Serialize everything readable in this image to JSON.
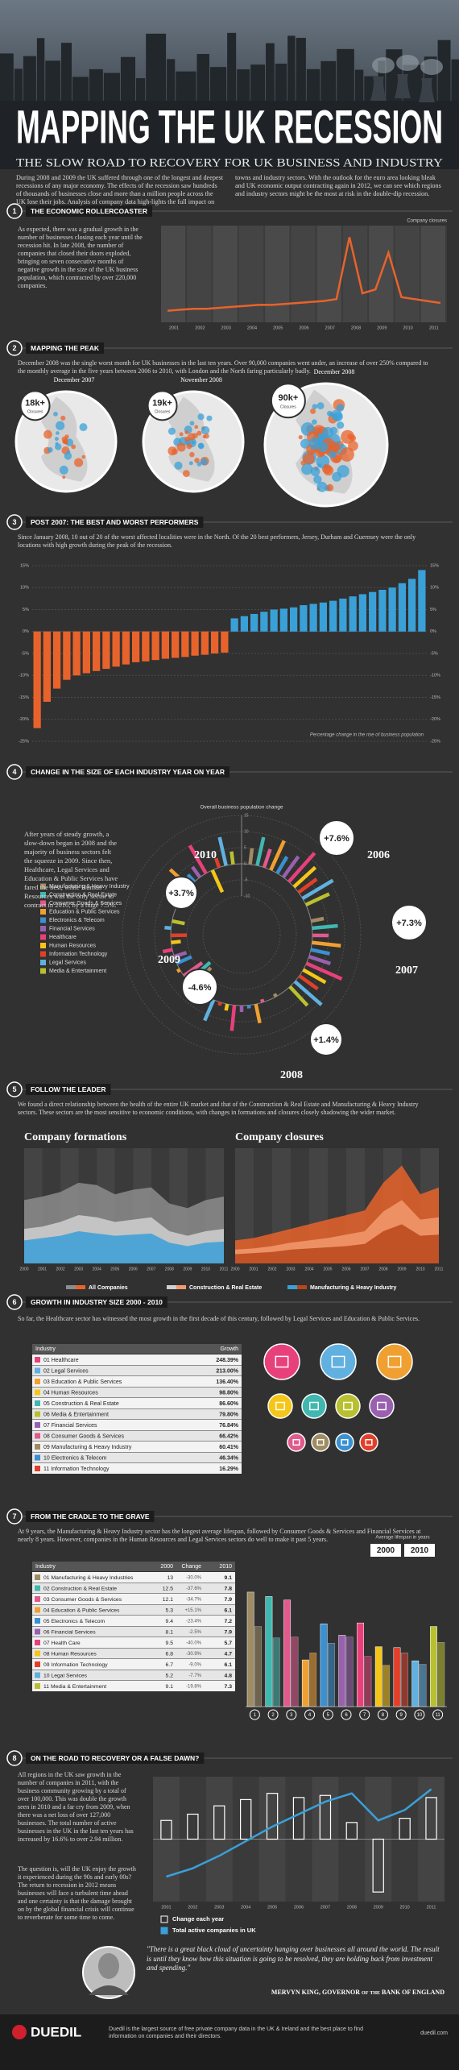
{
  "header": {
    "title": "MAPPING THE UK RECESSION",
    "subtitle": "THE SLOW ROAD TO RECOVERY FOR UK BUSINESS AND INDUSTRY",
    "intro": "During 2008 and 2009 the UK suffered through one of the longest and deepest recessions of any major economy. The effects of the recession saw hundreds of thousands of businesses close and more than a million people across the UK lose their jobs. Analysis of company data high-lights the full impact on towns and industry sectors. With the outlook for the euro area looking bleak and UK economic output contracting again in 2012, we can see which regions and industry sectors might be the most at risk in the double-dip recession."
  },
  "sections": [
    {
      "number": "1",
      "heading": "THE ECONOMIC ROLLERCOASTER",
      "text": "As expected, there was a gradual growth in the number of businesses closing each year until the recession hit. In late 2008, the number of companies that closed their doors exploded, bringing on seven consecutive months of negative growth in the size of the UK business population, which contracted by over 220,000 companies."
    },
    {
      "number": "2",
      "heading": "MAPPING THE PEAK",
      "text": "December 2008 was the single worst month for UK businesses in the last ten years. Over 90,000 companies went under, an increase of over 250% compared to the monthly average in the five years between 2006 to 2010, with London and the North faring particularly badly."
    },
    {
      "number": "3",
      "heading": "POST 2007: THE BEST AND WORST PERFORMERS",
      "text": "Since January 2008, 10 out of 20 of the worst affected localities were in the North. Of the 20 best performers, Jersey, Durham and Guernsey were the only locations with high growth during the peak of the recession."
    },
    {
      "number": "4",
      "heading": "CHANGE IN THE SIZE OF EACH INDUSTRY YEAR ON YEAR",
      "text": "After years of steady growth, a slow-down began in 2008 and the majority of business sectors felt the squeeze in 2009. Since then, Healthcare, Legal Services and Education & Public Services have fared the best, while Human Resources was the only sector to contract in 2010, by a huge 7.5%."
    },
    {
      "number": "5",
      "heading": "FOLLOW THE LEADER",
      "text": "We found a direct relationship between the health of the entire UK market and that of the Construction & Real Estate and Manufacturing & Heavy Industry sectors. These sectors are the most sensitive to economic conditions, with changes in formations and closures closely shadowing the wider market."
    },
    {
      "number": "6",
      "heading": "GROWTH IN INDUSTRY SIZE 2000 - 2010",
      "text": "So far, the Healthcare sector has witnessed the most growth in the first decade of this century, followed by Legal Services and Education & Public Services."
    },
    {
      "number": "7",
      "heading": "FROM THE CRADLE TO THE GRAVE",
      "text": "At 9 years, the Manufacturing & Heavy Industry sector has the longest average lifespan, followed by Consumer Goods & Services and Financial Services at nearly 8 years. However, companies in the Human Resources and Legal Services sectors do well to make it past 5 years."
    },
    {
      "number": "8",
      "heading": "ON THE ROAD TO RECOVERY OR A FALSE DAWN?",
      "text": "All regions in the UK saw growth in the number of companies in 2011, with the business community growing by a total of over 100,000. This was double the growth seen in 2010 and a far cry from 2009, when there was a net loss of over 127,000 businesses. The total number of active businesses in the UK in the last ten years has increased by 16.6% to over 2.94 million.",
      "text2": "The question is, will the UK enjoy the growth it experienced during the 90s and early 00s? The return to recession in 2012 means businesses will face a turbulent time ahead and one certainty is that the damage brought on by the global financial crisis will continue to reverberate for some time to come."
    }
  ],
  "maps": [
    {
      "label": "December 2007",
      "value": "18k+",
      "unit": "Closures"
    },
    {
      "label": "November 2008",
      "value": "19k+",
      "unit": "Closures"
    },
    {
      "label": "December 2008",
      "value": "90k+",
      "unit": "Closures"
    }
  ],
  "chart_data": [
    {
      "type": "line",
      "title": "Company closures",
      "categories": [
        "2001",
        null,
        "2002",
        null,
        "2003",
        null,
        "2004",
        null,
        "2005",
        null,
        "2006",
        null,
        "2007",
        null,
        "2008",
        null,
        "2009",
        null,
        "2010",
        null,
        "2011",
        null
      ],
      "values": [
        12,
        13,
        14,
        14,
        15,
        16,
        17,
        18,
        18,
        19,
        20,
        21,
        22,
        24,
        88,
        30,
        34,
        72,
        26,
        24,
        22,
        20
      ],
      "color": "#e8632b",
      "ylim": [
        0,
        100
      ]
    },
    {
      "type": "bar",
      "values": [
        -22,
        -16,
        -13,
        -11,
        -10,
        -9.5,
        -9,
        -8.5,
        -8,
        -7.5,
        -7,
        -6.8,
        -6.5,
        -6.2,
        -6,
        -5.8,
        -5.5,
        -5.3,
        -5,
        -4.8,
        3,
        3.5,
        4,
        4.5,
        5,
        5.2,
        5.5,
        6,
        6.3,
        6.6,
        7,
        7.5,
        8,
        8.5,
        9,
        9.5,
        10,
        11,
        12,
        14
      ],
      "color": "#3aa0d8",
      "negative_color": "#e8632b",
      "ylim": [
        -25,
        15
      ],
      "yticks": [
        {
          "value": -25,
          "label": "-25%"
        },
        {
          "value": -20,
          "label": "-20%"
        },
        {
          "value": -15,
          "label": "-15%"
        },
        {
          "value": -10,
          "label": "-10%"
        },
        {
          "value": -5,
          "label": "-5%"
        },
        {
          "value": 0,
          "label": "0%"
        },
        {
          "value": 5,
          "label": "5%"
        },
        {
          "value": 10,
          "label": "10%"
        },
        {
          "value": 15,
          "label": "15%"
        }
      ],
      "x_label": "Percentage change in the rise of business population",
      "grid": true
    },
    {
      "type": "radial",
      "title": "Overall business population change",
      "categories": [
        "2006",
        "2007",
        "2008",
        "2009",
        "2010"
      ],
      "values": [
        7.6,
        7.3,
        1.4,
        -4.6,
        3.7
      ],
      "value_labels": [
        "+7.6%",
        "+7.3%",
        "+1.4%",
        "-4.6%",
        "+3.7%"
      ],
      "ylim": [
        -10,
        15
      ],
      "yticks": [
        -10,
        -5,
        0,
        5,
        10,
        15
      ],
      "series": [
        {
          "name": "Manufacturing & Heavy Industry",
          "color": "#a08c64",
          "values": [
            5,
            4,
            -1,
            -8,
            1
          ]
        },
        {
          "name": "Construction & Real Estate",
          "color": "#40b8b0",
          "values": [
            9,
            8,
            0,
            -9,
            2
          ]
        },
        {
          "name": "Consumer Goods & Services",
          "color": "#e05a8c",
          "values": [
            6,
            5,
            -1,
            -7,
            2
          ]
        },
        {
          "name": "Education & Public Services",
          "color": "#f0a030",
          "values": [
            10,
            9,
            6,
            1,
            8
          ]
        },
        {
          "name": "Electronics & Telecom",
          "color": "#3a90d0",
          "values": [
            6,
            6,
            1,
            -5,
            3
          ]
        },
        {
          "name": "Financial Services",
          "color": "#9a60b0",
          "values": [
            8,
            7,
            2,
            -4,
            4
          ]
        },
        {
          "name": "Healthcare",
          "color": "#e8407a",
          "values": [
            12,
            12,
            8,
            3,
            10
          ]
        },
        {
          "name": "Human Resources",
          "color": "#f5c518",
          "values": [
            9,
            8,
            2,
            -3,
            -7.5
          ]
        },
        {
          "name": "Information Technology",
          "color": "#e0402a",
          "values": [
            7,
            7,
            1,
            -5,
            3
          ]
        },
        {
          "name": "Legal Services",
          "color": "#60b0e0",
          "values": [
            11,
            11,
            7,
            2,
            9
          ]
        },
        {
          "name": "Media & Entertainment",
          "color": "#b8c030",
          "values": [
            8,
            8,
            2,
            -4,
            4
          ]
        }
      ]
    },
    {
      "type": "area",
      "title": "Company formations",
      "categories": [
        "2000",
        "2001",
        "2002",
        "2003",
        "2004",
        "2005",
        "2006",
        "2007",
        "2008",
        "2009",
        "2010",
        "2011"
      ],
      "ylim": [
        0,
        100
      ],
      "series": [
        {
          "name": "All Companies",
          "color": "#8c8c8c",
          "values": [
            55,
            58,
            62,
            70,
            68,
            60,
            64,
            66,
            52,
            48,
            55,
            58
          ]
        },
        {
          "name": "Construction & Real Estate",
          "color": "#d0d0d0",
          "values": [
            30,
            32,
            36,
            42,
            40,
            36,
            38,
            40,
            28,
            24,
            28,
            30
          ]
        },
        {
          "name": "Manufacturing & Heavy Industry",
          "color": "#3aa0d8",
          "values": [
            20,
            22,
            24,
            28,
            26,
            24,
            25,
            26,
            18,
            15,
            18,
            19
          ]
        }
      ]
    },
    {
      "type": "area",
      "title": "Company closures",
      "categories": [
        "2000",
        "2001",
        "2002",
        "2003",
        "2004",
        "2005",
        "2006",
        "2007",
        "2008",
        "2009",
        "2010",
        "2011"
      ],
      "ylim": [
        0,
        100
      ],
      "series": [
        {
          "name": "All Companies",
          "color": "#e8632b",
          "values": [
            20,
            22,
            26,
            30,
            34,
            38,
            42,
            46,
            70,
            85,
            60,
            66
          ]
        },
        {
          "name": "Construction & Real Estate",
          "color": "#f29a6e",
          "values": [
            12,
            13,
            15,
            18,
            20,
            22,
            25,
            28,
            45,
            55,
            38,
            40
          ]
        },
        {
          "name": "Manufacturing & Heavy Industry",
          "color": "#b8461a",
          "values": [
            8,
            9,
            10,
            12,
            13,
            14,
            15,
            17,
            28,
            34,
            24,
            25
          ]
        }
      ]
    },
    {
      "type": "grouped_bar",
      "title": "Average lifespan in years",
      "categories": [
        "1",
        "2",
        "3",
        "4",
        "5",
        "6",
        "7",
        "8",
        "9",
        "10",
        "11"
      ],
      "ylim": [
        0,
        14
      ],
      "series": [
        {
          "name": "2000",
          "values": [
            13,
            12.5,
            12.1,
            5.3,
            9.4,
            8.1,
            9.5,
            6.8,
            6.7,
            5.2,
            9.1
          ]
        },
        {
          "name": "2010",
          "values": [
            9.1,
            7.8,
            7.9,
            6.1,
            7.2,
            7.9,
            5.7,
            4.7,
            6.1,
            4.8,
            7.3
          ]
        }
      ]
    },
    {
      "type": "combo",
      "categories": [
        "2001",
        "2002",
        "2003",
        "2004",
        "2005",
        "2006",
        "2007",
        "2008",
        "2009",
        "2010",
        "2011"
      ],
      "ylim": [
        -150,
        150
      ],
      "y2lim": [
        2.4,
        3.0
      ],
      "series": [
        {
          "name": "Change each year",
          "color": "#ffffff",
          "style": "bar",
          "values": [
            45,
            60,
            80,
            95,
            110,
            100,
            105,
            40,
            -127,
            50,
            100
          ]
        },
        {
          "name": "Total active companies in UK",
          "color": "#3aa0d8",
          "axis": "y2",
          "values": [
            2.52,
            2.56,
            2.62,
            2.69,
            2.76,
            2.82,
            2.88,
            2.92,
            2.79,
            2.84,
            2.94
          ]
        }
      ]
    }
  ],
  "growth_table": {
    "header": [
      "Industry",
      "Growth"
    ],
    "colors": [
      "#e8407a",
      "#60b0e0",
      "#f0a030",
      "#f5c518",
      "#40b8b0",
      "#b8c030",
      "#9a60b0",
      "#e05a8c",
      "#a08c64",
      "#3a90d0",
      "#e0402a"
    ],
    "rows": [
      [
        "01 Healthcare",
        "248.39%"
      ],
      [
        "02 Legal Services",
        "213.00%"
      ],
      [
        "03 Education & Public Services",
        "136.40%"
      ],
      [
        "04 Human Resources",
        "98.80%"
      ],
      [
        "05 Construction & Real Estate",
        "86.60%"
      ],
      [
        "06 Media & Entertainment",
        "79.80%"
      ],
      [
        "07 Financial Services",
        "76.84%"
      ],
      [
        "08 Consumer Goods & Services",
        "66.42%"
      ],
      [
        "09 Manufacturing & Heavy Industry",
        "60.41%"
      ],
      [
        "10 Electronics & Telecom",
        "46.34%"
      ],
      [
        "11 Information Technology",
        "16.29%"
      ]
    ]
  },
  "lifespan_table": {
    "header": [
      "Industry",
      "2000",
      "Change",
      "2010"
    ],
    "rows": [
      {
        "name": "01 Manufacturing & Heavy Industries",
        "change": "-30.0%"
      },
      {
        "name": "02 Construction & Real Estate",
        "change": "-37.6%"
      },
      {
        "name": "03 Consumer Goods & Services",
        "change": "-34.7%"
      },
      {
        "name": "04 Education & Public Services",
        "change": "+15.1%"
      },
      {
        "name": "05 Electronics & Telecom",
        "change": "-23.4%"
      },
      {
        "name": "06 Financial Services",
        "change": "-2.5%"
      },
      {
        "name": "07 Health Care",
        "change": "-40.0%"
      },
      {
        "name": "08 Human Resources",
        "change": "-30.9%"
      },
      {
        "name": "09 Information Technology",
        "change": "-9.0%"
      },
      {
        "name": "10 Legal Services",
        "change": "-7.7%"
      },
      {
        "name": "11 Media & Entertainment",
        "change": "-19.8%"
      }
    ]
  },
  "quote": {
    "text": "\"There is a great black cloud of uncertainty hanging over businesses all around the world. The result is until they know how this situation is going to be resolved, they are holding back from investment and spending.\"",
    "author": "MERVYN KING, GOVERNOR of the BANK OF ENGLAND"
  },
  "footer": {
    "logo": "DUEDIL",
    "text": "Duedil is the largest source of free private company data in the UK & Ireland and the best place to find information on companies and their directors.",
    "url": "duedil.com"
  }
}
